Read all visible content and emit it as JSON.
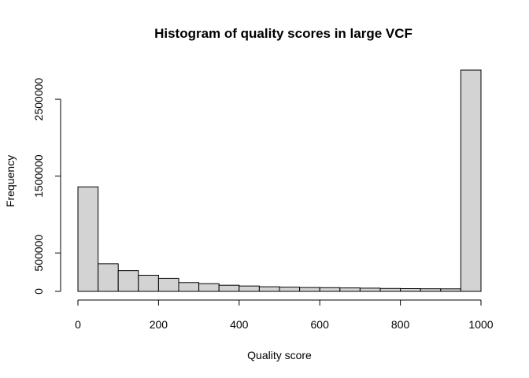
{
  "chart_data": {
    "type": "bar",
    "title": "Histogram of quality scores in large VCF",
    "xlabel": "Quality score",
    "ylabel": "Frequency",
    "bin_edges": [
      0,
      50,
      100,
      150,
      200,
      250,
      300,
      350,
      400,
      450,
      500,
      550,
      600,
      650,
      700,
      750,
      800,
      850,
      900,
      950,
      1000
    ],
    "values": [
      1360000,
      360000,
      270000,
      210000,
      170000,
      115000,
      100000,
      80000,
      70000,
      60000,
      55000,
      50000,
      48000,
      45000,
      42000,
      38000,
      36000,
      34000,
      33000,
      2880000
    ],
    "xlim": [
      0,
      1000
    ],
    "ylim": [
      0,
      2880000
    ],
    "x_ticks": [
      0,
      200,
      400,
      600,
      800,
      1000
    ],
    "x_tick_labels": [
      "0",
      "200",
      "400",
      "600",
      "800",
      "1000"
    ],
    "y_ticks": [
      0,
      500000,
      1500000,
      2500000
    ],
    "y_tick_labels": [
      "0",
      "500000",
      "1500000",
      "2500000"
    ],
    "bar_color": "#d3d3d3",
    "grid": false,
    "legend": false
  }
}
